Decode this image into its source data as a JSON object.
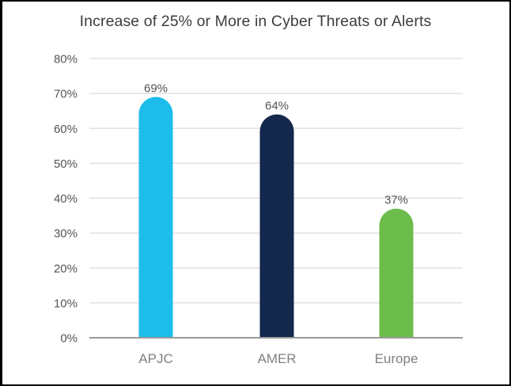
{
  "chart_data": {
    "type": "bar",
    "title": "Increase of 25% or More in Cyber Threats or Alerts",
    "categories": [
      "APJC",
      "AMER",
      "Europe"
    ],
    "values": [
      69,
      64,
      37
    ],
    "data_labels": [
      "69%",
      "64%",
      "37%"
    ],
    "colors": [
      "#1cbdea",
      "#13284c",
      "#6cbd4b"
    ],
    "xlabel": "",
    "ylabel": "",
    "ylim": [
      0,
      80
    ],
    "yticks": [
      0,
      10,
      20,
      30,
      40,
      50,
      60,
      70,
      80
    ],
    "ytick_labels": [
      "0%",
      "10%",
      "20%",
      "30%",
      "40%",
      "50%",
      "60%",
      "70%",
      "80%"
    ],
    "grid": true,
    "legend": "none"
  }
}
